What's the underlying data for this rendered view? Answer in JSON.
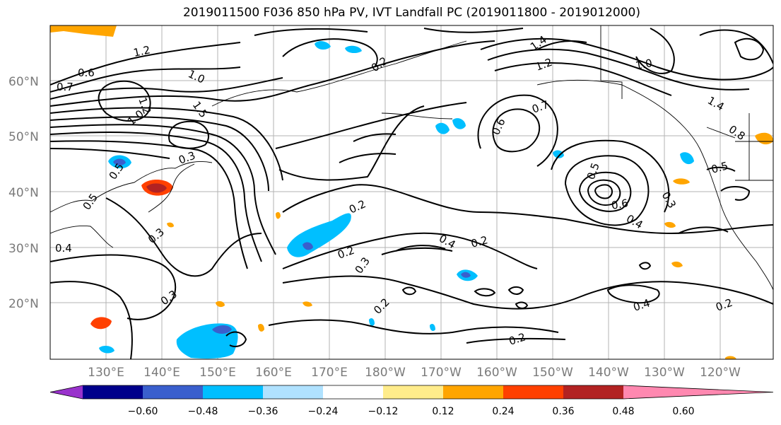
{
  "title": "2019011500 F036 850 hPa PV, IVT Landfall PC (2019011800 - 2019012000)",
  "latitude_labels": [
    "60°N",
    "50°N",
    "40°N",
    "30°N",
    "20°N"
  ],
  "longitude_labels": [
    "130°E",
    "140°E",
    "150°E",
    "160°E",
    "170°E",
    "180°W",
    "170°W",
    "160°W",
    "150°W",
    "140°W",
    "130°W",
    "120°W"
  ],
  "colorbar": {
    "colors": [
      "#9932cc",
      "#00008b",
      "#3a5fcd",
      "#00bfff",
      "#b0e2ff",
      "#ffffff",
      "#ffec8b",
      "#ffa500",
      "#ff4000",
      "#b22222",
      "#ff88b0"
    ],
    "tick_labels": [
      "−0.60",
      "−0.48",
      "−0.36",
      "−0.24",
      "−0.12",
      "0.12",
      "0.24",
      "0.36",
      "0.48",
      "0.60"
    ]
  },
  "contour_labels": [
    "1.2",
    "0.6",
    "0.7",
    "1.0",
    "1.5",
    "1.2",
    "1.0",
    "0.5",
    "0.3",
    "0.5",
    "0.4",
    "0.3",
    "0.3",
    "0.2",
    "0.2",
    "0.3",
    "0.4",
    "0.2",
    "0.2",
    "0.2",
    "0.2",
    "0.7",
    "0.6",
    "1.2",
    "1.4",
    "1.0",
    "0.8",
    "0.5",
    "0.6",
    "0.3",
    "0.4",
    "0.4",
    "0.2",
    "0.5",
    "1.4"
  ]
}
